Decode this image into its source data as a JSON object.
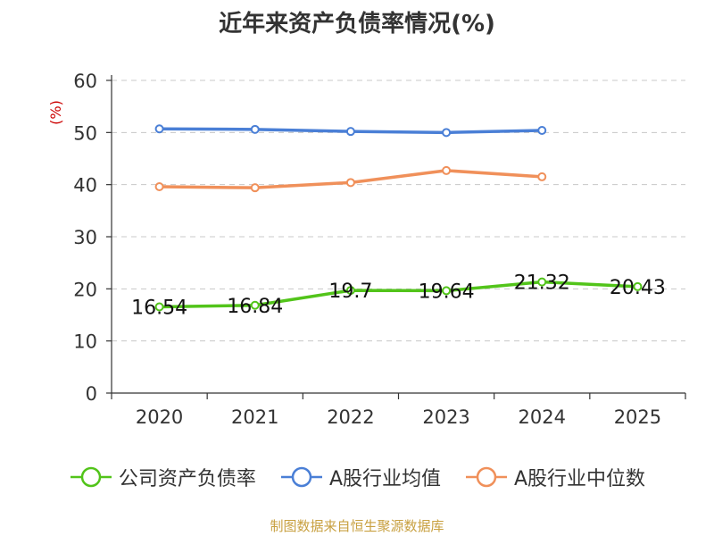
{
  "chart_data": {
    "type": "line",
    "title": "近年来资产负债率情况(%)",
    "ylabel": "(%)",
    "categories": [
      "2020",
      "2021",
      "2022",
      "2023",
      "2024",
      "2025"
    ],
    "ylim": [
      0,
      60
    ],
    "yticks": [
      "0",
      "10",
      "20",
      "30",
      "40",
      "50",
      "60"
    ],
    "grid": true,
    "legend_position": "bottom",
    "series": [
      {
        "name": "公司资产负债率",
        "color": "#52c41a",
        "values": [
          16.54,
          16.84,
          19.7,
          19.64,
          21.32,
          20.43
        ],
        "data_labels": [
          "16.54",
          "16.84",
          "19.7",
          "19.64",
          "21.32",
          "20.43"
        ]
      },
      {
        "name": "A股行业均值",
        "color": "#4a7fd6",
        "values": [
          50.7,
          50.6,
          50.2,
          50.0,
          50.4,
          null
        ]
      },
      {
        "name": "A股行业中位数",
        "color": "#f0905a",
        "values": [
          39.6,
          39.4,
          40.4,
          42.7,
          41.5,
          null
        ]
      }
    ]
  },
  "footer": {
    "source": "制图数据来自恒生聚源数据库"
  }
}
